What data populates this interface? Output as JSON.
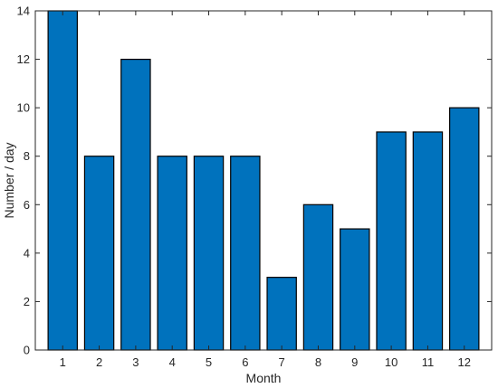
{
  "chart_data": {
    "type": "bar",
    "xlabel": "Month",
    "ylabel": "Number / day",
    "categories": [
      "1",
      "2",
      "3",
      "4",
      "5",
      "6",
      "7",
      "8",
      "9",
      "10",
      "11",
      "12"
    ],
    "values": [
      14,
      8,
      12,
      8,
      8,
      8,
      3,
      6,
      5,
      9,
      9,
      10
    ],
    "ylim": [
      0,
      14
    ],
    "yticks": [
      0,
      2,
      4,
      6,
      8,
      10,
      12,
      14
    ],
    "grid": false,
    "legend": "none",
    "colors": {
      "bar": "#0072BD",
      "edge": "#000000",
      "axis": "#262626"
    }
  }
}
